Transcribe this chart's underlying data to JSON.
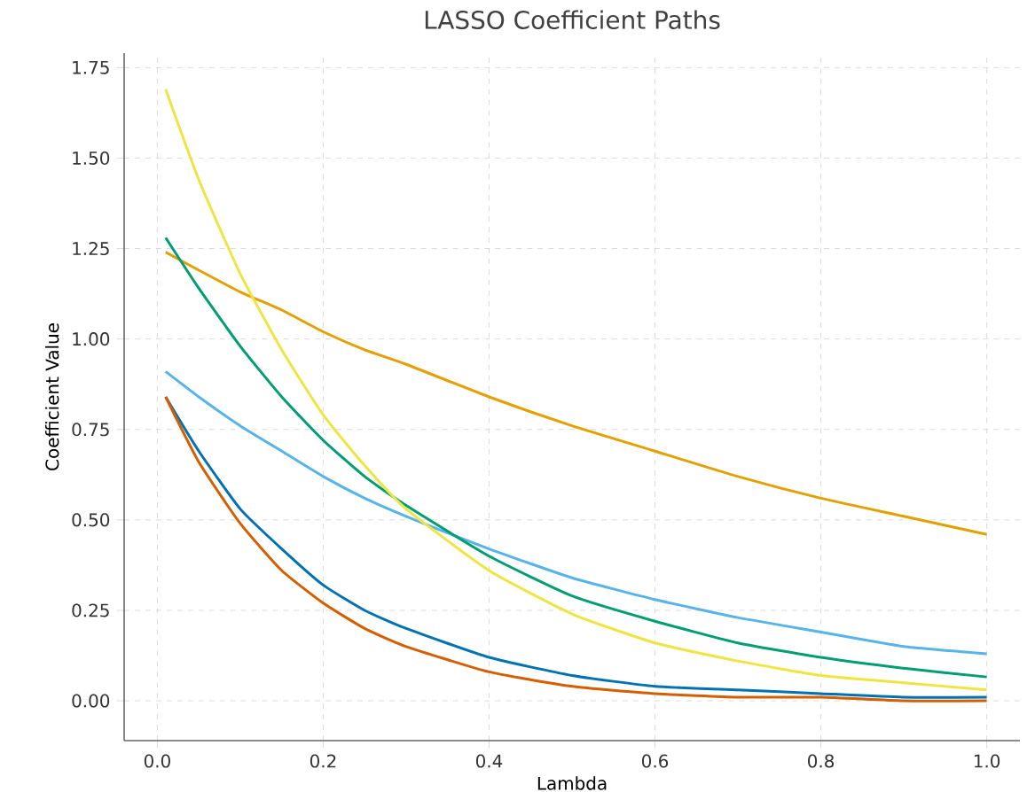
{
  "chart_data": {
    "type": "line",
    "title": "LASSO Coefficient Paths",
    "xlabel": "Lambda",
    "ylabel": "Coefficient Value",
    "x": [
      0.01,
      0.05,
      0.1,
      0.15,
      0.2,
      0.25,
      0.3,
      0.4,
      0.5,
      0.6,
      0.7,
      0.8,
      0.9,
      1.0
    ],
    "series": [
      {
        "color": "#0072b2",
        "values": [
          0.84,
          0.69,
          0.53,
          0.42,
          0.32,
          0.25,
          0.2,
          0.12,
          0.07,
          0.04,
          0.03,
          0.02,
          0.01,
          0.01
        ]
      },
      {
        "color": "#d55e00",
        "values": [
          0.84,
          0.66,
          0.49,
          0.36,
          0.27,
          0.2,
          0.15,
          0.08,
          0.04,
          0.02,
          0.01,
          0.01,
          0.0,
          0.0
        ]
      },
      {
        "color": "#e69f00",
        "values": [
          1.24,
          1.19,
          1.13,
          1.08,
          1.02,
          0.97,
          0.93,
          0.84,
          0.76,
          0.69,
          0.62,
          0.56,
          0.51,
          0.46
        ]
      },
      {
        "color": "#56b4e9",
        "values": [
          0.91,
          0.84,
          0.76,
          0.69,
          0.62,
          0.56,
          0.51,
          0.42,
          0.34,
          0.28,
          0.23,
          0.19,
          0.15,
          0.13
        ]
      },
      {
        "color": "#009e73",
        "values": [
          1.28,
          1.14,
          0.98,
          0.84,
          0.72,
          0.62,
          0.54,
          0.4,
          0.29,
          0.22,
          0.16,
          0.12,
          0.09,
          0.066
        ]
      },
      {
        "color": "#f0e442",
        "values": [
          1.69,
          1.44,
          1.18,
          0.97,
          0.79,
          0.65,
          0.53,
          0.36,
          0.24,
          0.16,
          0.11,
          0.07,
          0.05,
          0.03
        ]
      }
    ],
    "xlim": [
      -0.04,
      1.04
    ],
    "ylim": [
      -0.11,
      1.79
    ],
    "xticks": [
      {
        "value": 0,
        "label": "0.0"
      },
      {
        "value": 0.2,
        "label": "0.2"
      },
      {
        "value": 0.4,
        "label": "0.4"
      },
      {
        "value": 0.6,
        "label": "0.6"
      },
      {
        "value": 0.8,
        "label": "0.8"
      },
      {
        "value": 1,
        "label": "1.0"
      }
    ],
    "yticks": [
      {
        "value": 0,
        "label": "0.00"
      },
      {
        "value": 0.25,
        "label": "0.25"
      },
      {
        "value": 0.5,
        "label": "0.50"
      },
      {
        "value": 0.75,
        "label": "0.75"
      },
      {
        "value": 1,
        "label": "1.00"
      },
      {
        "value": 1.25,
        "label": "1.25"
      },
      {
        "value": 1.5,
        "label": "1.50"
      },
      {
        "value": 1.75,
        "label": "1.75"
      }
    ],
    "grid": true,
    "marker": "none",
    "line_style": "solid"
  }
}
